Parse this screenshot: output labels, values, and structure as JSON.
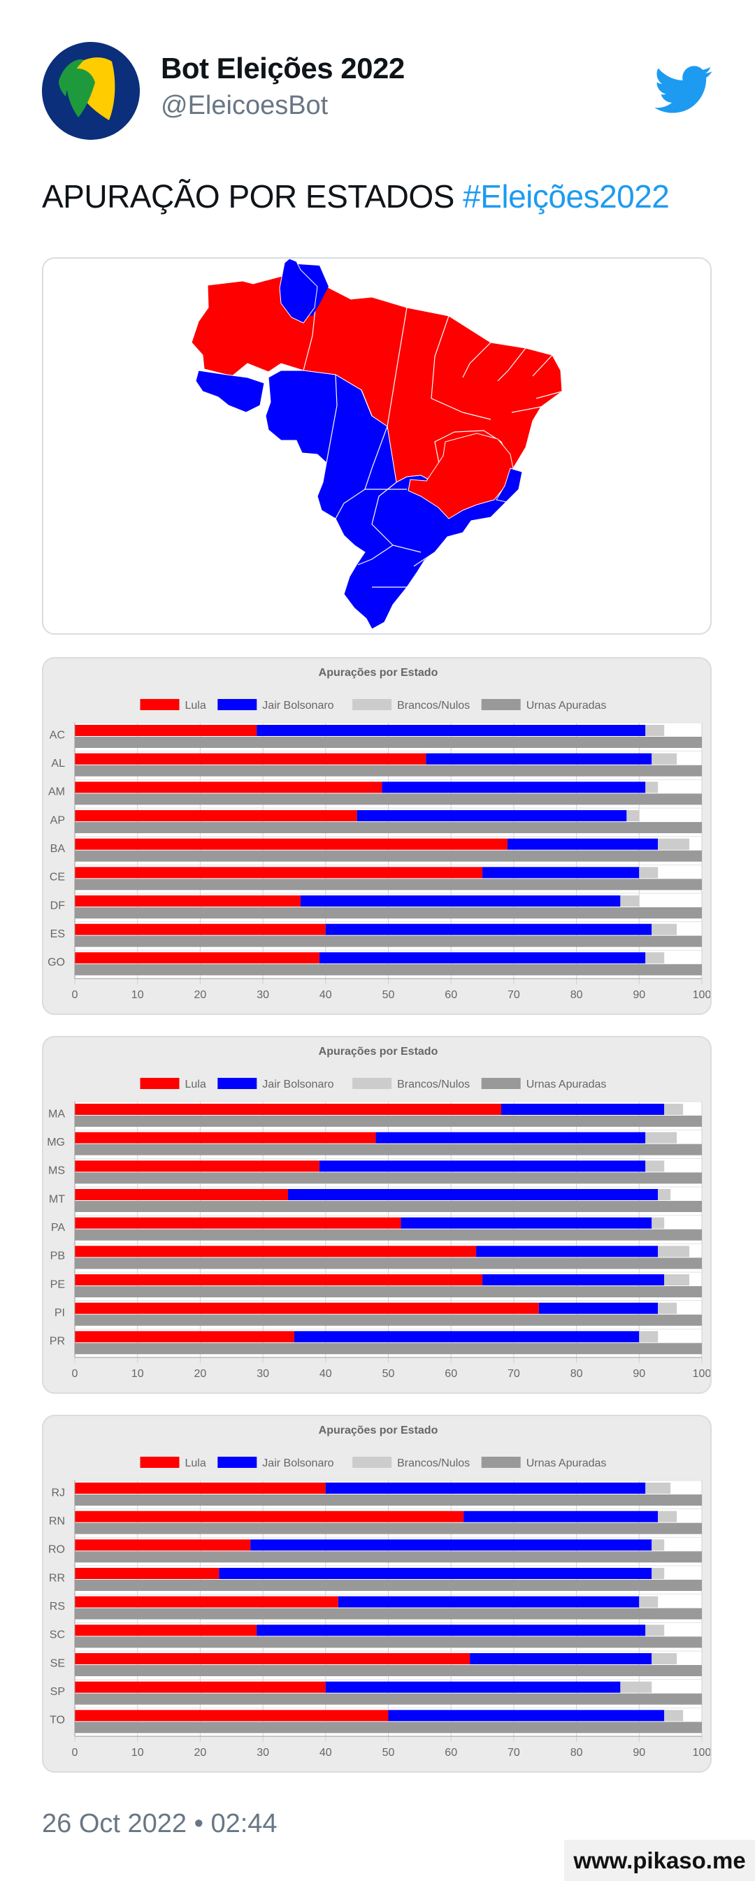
{
  "profile": {
    "name": "Bot Eleições 2022",
    "handle": "@EleicoesBot"
  },
  "tweet": {
    "text_main": "APURAÇÃO POR ESTADOS",
    "hashtag": "#Eleições2022"
  },
  "colors": {
    "lula": "#ff0000",
    "bolsonaro": "#0000ff",
    "brancos": "#cccccc",
    "urnas": "#999999",
    "hashtag": "#1d9bf0"
  },
  "icons": {
    "logo": "eleicoes-flag-logo",
    "twitter": "twitter-bird-icon"
  },
  "chart_data": [
    {
      "type": "bar",
      "orientation": "horizontal",
      "title": "Apurações por Estado",
      "legend": {
        "position": "top",
        "entries": [
          "Lula",
          "Jair Bolsonaro",
          "Brancos/Nulos",
          "Urnas Apuradas"
        ]
      },
      "xlim": [
        0,
        100
      ],
      "xticks": [
        0,
        10,
        20,
        30,
        40,
        50,
        60,
        70,
        80,
        90,
        100
      ],
      "categories": [
        "AC",
        "AL",
        "AM",
        "AP",
        "BA",
        "CE",
        "DF",
        "ES",
        "GO"
      ],
      "series": [
        {
          "name": "Lula",
          "values": [
            29,
            56,
            49,
            45,
            69,
            65,
            36,
            40,
            39
          ]
        },
        {
          "name": "Jair Bolsonaro",
          "values": [
            62,
            36,
            42,
            43,
            24,
            25,
            51,
            52,
            52
          ]
        },
        {
          "name": "Brancos/Nulos",
          "values": [
            3,
            4,
            2,
            2,
            5,
            3,
            3,
            4,
            3
          ]
        },
        {
          "name": "Urnas Apuradas",
          "values": [
            100,
            100,
            100,
            100,
            100,
            100,
            100,
            100,
            100
          ]
        }
      ]
    },
    {
      "type": "bar",
      "orientation": "horizontal",
      "title": "Apurações por Estado",
      "legend": {
        "position": "top",
        "entries": [
          "Lula",
          "Jair Bolsonaro",
          "Brancos/Nulos",
          "Urnas Apuradas"
        ]
      },
      "xlim": [
        0,
        100
      ],
      "xticks": [
        0,
        10,
        20,
        30,
        40,
        50,
        60,
        70,
        80,
        90,
        100
      ],
      "categories": [
        "MA",
        "MG",
        "MS",
        "MT",
        "PA",
        "PB",
        "PE",
        "PI",
        "PR"
      ],
      "series": [
        {
          "name": "Lula",
          "values": [
            68,
            48,
            39,
            34,
            52,
            64,
            65,
            74,
            35
          ]
        },
        {
          "name": "Jair Bolsonaro",
          "values": [
            26,
            43,
            52,
            59,
            40,
            29,
            29,
            19,
            55
          ]
        },
        {
          "name": "Brancos/Nulos",
          "values": [
            3,
            5,
            3,
            2,
            2,
            5,
            4,
            3,
            3
          ]
        },
        {
          "name": "Urnas Apuradas",
          "values": [
            100,
            100,
            100,
            100,
            100,
            100,
            100,
            100,
            100
          ]
        }
      ]
    },
    {
      "type": "bar",
      "orientation": "horizontal",
      "title": "Apurações por Estado",
      "legend": {
        "position": "top",
        "entries": [
          "Lula",
          "Jair Bolsonaro",
          "Brancos/Nulos",
          "Urnas Apuradas"
        ]
      },
      "xlim": [
        0,
        100
      ],
      "xticks": [
        0,
        10,
        20,
        30,
        40,
        50,
        60,
        70,
        80,
        90,
        100
      ],
      "categories": [
        "RJ",
        "RN",
        "RO",
        "RR",
        "RS",
        "SC",
        "SE",
        "SP",
        "TO"
      ],
      "series": [
        {
          "name": "Lula",
          "values": [
            40,
            62,
            28,
            23,
            42,
            29,
            63,
            40,
            50
          ]
        },
        {
          "name": "Jair Bolsonaro",
          "values": [
            51,
            31,
            64,
            69,
            48,
            62,
            29,
            47,
            44
          ]
        },
        {
          "name": "Brancos/Nulos",
          "values": [
            4,
            3,
            2,
            2,
            3,
            3,
            4,
            5,
            3
          ]
        },
        {
          "name": "Urnas Apuradas",
          "values": [
            100,
            100,
            100,
            100,
            100,
            100,
            100,
            100,
            100
          ]
        }
      ]
    }
  ],
  "date": "26 Oct 2022 • 02:44",
  "watermark": "www.pikaso.me"
}
